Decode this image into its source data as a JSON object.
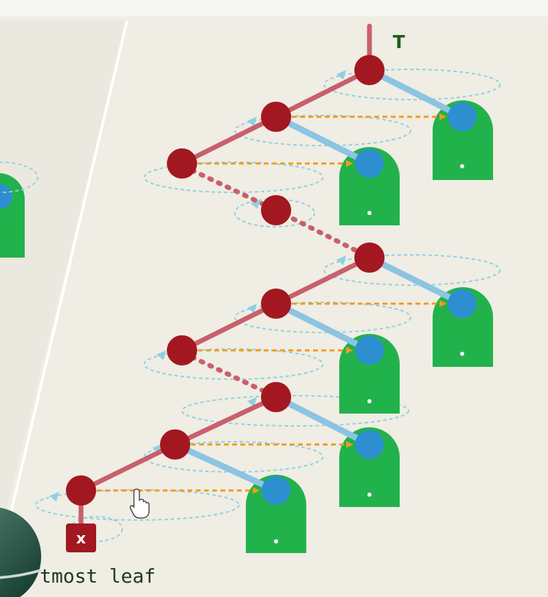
{
  "diagram": {
    "root_label": "T",
    "leaf_label": "x",
    "caption": "tmost leaf"
  },
  "colors": {
    "background": "#efede4",
    "red_node": "#a31820",
    "red_edge": "#c8606c",
    "blue_node": "#2e8fd0",
    "blue_edge": "#8cc4e2",
    "subtree": "#22b24c",
    "arrow": "#f29a1a",
    "cycle": "#8fd0e0"
  }
}
